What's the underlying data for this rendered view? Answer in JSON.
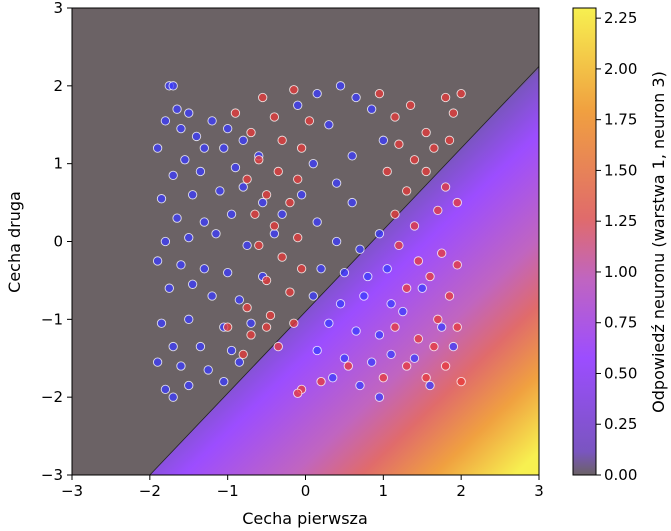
{
  "chart_data": {
    "type": "scatter",
    "title": "",
    "xlabel": "Cecha pierwsza",
    "ylabel": "Cecha druga",
    "xlim": [
      -3,
      3
    ],
    "ylim": [
      -3,
      3
    ],
    "x_ticks": [
      "−3",
      "−2",
      "−1",
      "0",
      "1",
      "2",
      "3"
    ],
    "y_ticks": [
      "−3",
      "−2",
      "−1",
      "0",
      "1",
      "2",
      "3"
    ],
    "background": {
      "type": "heatmap",
      "description_source": "neuron response",
      "boundary_line": {
        "x": [
          -2.0,
          3.0
        ],
        "y": [
          -3.0,
          2.25
        ]
      },
      "colormap": [
        "#6b6265",
        "#9c4dff",
        "#e06b6b",
        "#f0a040",
        "#f7f050"
      ]
    },
    "colorbar": {
      "label": "Odpowiedź neuronu (warstwa 1, neuron 3)",
      "range": [
        0,
        2.3
      ],
      "ticks": [
        "0.00",
        "0.25",
        "0.50",
        "0.75",
        "1.00",
        "1.25",
        "1.50",
        "1.75",
        "2.00",
        "2.25"
      ]
    },
    "series": [
      {
        "color": "#3b3bff",
        "points": [
          [
            -1.75,
            2.0
          ],
          [
            -1.7,
            2.0
          ],
          [
            -1.65,
            1.7
          ],
          [
            -1.8,
            1.55
          ],
          [
            -1.5,
            1.65
          ],
          [
            -1.6,
            1.45
          ],
          [
            -1.4,
            1.35
          ],
          [
            -1.9,
            1.2
          ],
          [
            -1.3,
            1.2
          ],
          [
            -1.55,
            1.05
          ],
          [
            -1.2,
            1.55
          ],
          [
            -1.0,
            1.45
          ],
          [
            -1.05,
            1.2
          ],
          [
            -0.8,
            1.3
          ],
          [
            -0.6,
            1.1
          ],
          [
            -0.9,
            0.95
          ],
          [
            -1.35,
            0.9
          ],
          [
            -1.7,
            0.85
          ],
          [
            -1.85,
            0.55
          ],
          [
            -1.45,
            0.6
          ],
          [
            -1.1,
            0.65
          ],
          [
            -0.8,
            0.7
          ],
          [
            -0.55,
            0.5
          ],
          [
            -0.3,
            0.35
          ],
          [
            -1.65,
            0.3
          ],
          [
            -1.3,
            0.25
          ],
          [
            -0.95,
            0.35
          ],
          [
            -1.8,
            0.0
          ],
          [
            -1.5,
            0.05
          ],
          [
            -1.15,
            0.1
          ],
          [
            -0.75,
            -0.05
          ],
          [
            -0.4,
            0.1
          ],
          [
            -1.9,
            -0.25
          ],
          [
            -1.6,
            -0.3
          ],
          [
            -1.3,
            -0.35
          ],
          [
            -1.0,
            -0.4
          ],
          [
            -0.55,
            -0.45
          ],
          [
            -1.75,
            -0.6
          ],
          [
            -1.45,
            -0.55
          ],
          [
            -1.2,
            -0.7
          ],
          [
            -0.85,
            -0.75
          ],
          [
            -1.85,
            -1.05
          ],
          [
            -1.5,
            -1.0
          ],
          [
            -1.05,
            -1.1
          ],
          [
            -0.7,
            -1.05
          ],
          [
            -1.7,
            -1.35
          ],
          [
            -1.35,
            -1.35
          ],
          [
            -0.95,
            -1.4
          ],
          [
            -1.9,
            -1.55
          ],
          [
            -1.6,
            -1.6
          ],
          [
            -1.25,
            -1.65
          ],
          [
            -0.85,
            -1.55
          ],
          [
            -1.8,
            -1.9
          ],
          [
            -1.5,
            -1.85
          ],
          [
            -1.05,
            -1.8
          ],
          [
            -1.7,
            -2.0
          ],
          [
            -0.1,
            1.75
          ],
          [
            0.15,
            1.9
          ],
          [
            0.45,
            2.0
          ],
          [
            0.3,
            1.5
          ],
          [
            0.65,
            1.85
          ],
          [
            0.85,
            1.7
          ],
          [
            1.0,
            1.3
          ],
          [
            0.6,
            1.1
          ],
          [
            0.1,
            1.0
          ],
          [
            0.4,
            0.75
          ],
          [
            0.6,
            0.5
          ],
          [
            -0.05,
            0.6
          ],
          [
            0.15,
            0.25
          ],
          [
            0.4,
            0.0
          ],
          [
            0.7,
            -0.1
          ],
          [
            0.95,
            0.1
          ],
          [
            0.2,
            -0.35
          ],
          [
            0.5,
            -0.4
          ],
          [
            0.8,
            -0.45
          ],
          [
            1.05,
            -0.35
          ],
          [
            0.1,
            -0.7
          ],
          [
            0.45,
            -0.8
          ],
          [
            0.75,
            -0.7
          ],
          [
            1.1,
            -0.8
          ],
          [
            0.3,
            -1.05
          ],
          [
            0.65,
            -1.15
          ],
          [
            0.95,
            -1.2
          ],
          [
            0.15,
            -1.4
          ],
          [
            0.5,
            -1.5
          ],
          [
            0.85,
            -1.55
          ],
          [
            1.1,
            -1.45
          ],
          [
            0.35,
            -1.75
          ],
          [
            0.7,
            -1.85
          ],
          [
            0.95,
            -2.0
          ],
          [
            1.4,
            -1.5
          ],
          [
            1.6,
            -1.85
          ],
          [
            1.75,
            -1.1
          ],
          [
            1.9,
            -1.35
          ],
          [
            1.25,
            -0.9
          ],
          [
            1.5,
            -0.6
          ]
        ]
      },
      {
        "color": "#e83a3a",
        "points": [
          [
            -0.9,
            1.65
          ],
          [
            -0.55,
            1.85
          ],
          [
            -0.4,
            1.6
          ],
          [
            -0.15,
            1.95
          ],
          [
            0.05,
            1.55
          ],
          [
            -0.7,
            1.4
          ],
          [
            -0.3,
            1.3
          ],
          [
            -0.05,
            1.2
          ],
          [
            -0.6,
            1.05
          ],
          [
            -0.35,
            0.9
          ],
          [
            -0.1,
            0.8
          ],
          [
            -0.75,
            0.8
          ],
          [
            -0.5,
            0.6
          ],
          [
            -0.2,
            0.5
          ],
          [
            -0.65,
            0.35
          ],
          [
            -0.4,
            0.2
          ],
          [
            -0.1,
            0.05
          ],
          [
            -0.6,
            -0.05
          ],
          [
            -0.3,
            -0.2
          ],
          [
            -0.05,
            -0.35
          ],
          [
            -0.5,
            -0.5
          ],
          [
            -0.2,
            -0.65
          ],
          [
            -0.75,
            -0.85
          ],
          [
            -0.45,
            -0.95
          ],
          [
            -0.15,
            -1.05
          ],
          [
            -1.0,
            -1.1
          ],
          [
            -0.7,
            -1.2
          ],
          [
            -0.35,
            -1.35
          ],
          [
            -0.8,
            -1.45
          ],
          [
            -0.05,
            -1.9
          ],
          [
            -0.1,
            -1.95
          ],
          [
            -0.5,
            -1.1
          ],
          [
            0.95,
            1.9
          ],
          [
            1.15,
            1.6
          ],
          [
            1.35,
            1.75
          ],
          [
            1.55,
            1.4
          ],
          [
            1.8,
            1.85
          ],
          [
            1.9,
            1.65
          ],
          [
            2.0,
            1.9
          ],
          [
            1.2,
            1.25
          ],
          [
            1.4,
            1.05
          ],
          [
            1.65,
            1.2
          ],
          [
            1.85,
            1.3
          ],
          [
            1.05,
            0.9
          ],
          [
            1.3,
            0.65
          ],
          [
            1.55,
            0.9
          ],
          [
            1.8,
            0.7
          ],
          [
            1.95,
            0.5
          ],
          [
            1.15,
            0.35
          ],
          [
            1.4,
            0.2
          ],
          [
            1.7,
            0.4
          ],
          [
            1.2,
            -0.05
          ],
          [
            1.45,
            -0.25
          ],
          [
            1.75,
            -0.15
          ],
          [
            1.95,
            -0.3
          ],
          [
            1.3,
            -0.6
          ],
          [
            1.6,
            -0.45
          ],
          [
            1.85,
            -0.7
          ],
          [
            1.15,
            -1.1
          ],
          [
            1.45,
            -1.25
          ],
          [
            1.7,
            -1.0
          ],
          [
            1.95,
            -1.1
          ],
          [
            1.3,
            -1.6
          ],
          [
            1.55,
            -1.75
          ],
          [
            1.8,
            -1.6
          ],
          [
            2.0,
            -1.8
          ],
          [
            1.0,
            -1.75
          ],
          [
            0.2,
            -1.8
          ],
          [
            0.55,
            -1.6
          ],
          [
            1.65,
            -1.35
          ]
        ]
      }
    ]
  }
}
